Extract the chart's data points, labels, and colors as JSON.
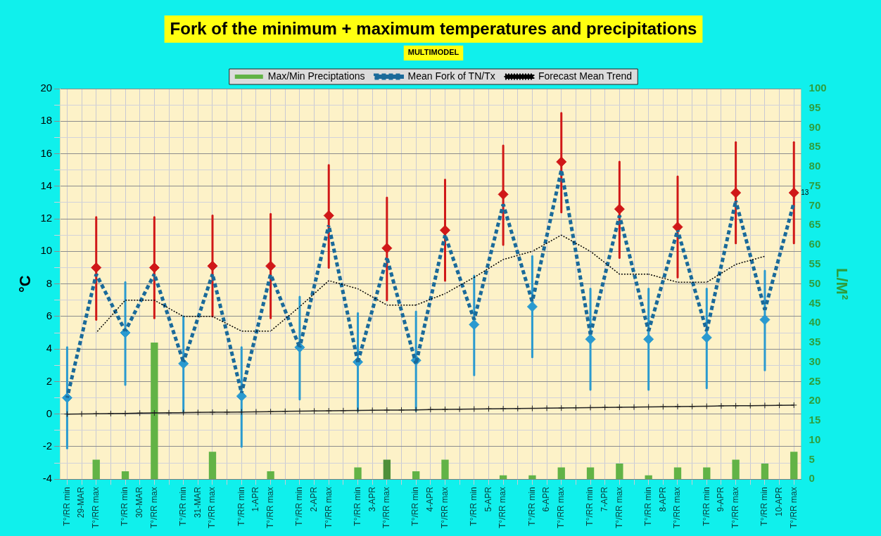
{
  "chart_data": {
    "type": "line",
    "title": "Fork of the minimum + maximum temperatures and precipitations",
    "subtitle": "MULTIMODEL",
    "ylabel": "°C",
    "y2label": "L/M²",
    "categories": [
      "T°/RR min",
      "29-MAR",
      "T°/RR max",
      null,
      "T°/RR min",
      "30-MAR",
      "T°/RR max",
      null,
      "T°/RR min",
      "31-MAR",
      "T°/RR max",
      null,
      "T°/RR min",
      "1-APR",
      "T°/RR max",
      null,
      "T°/RR min",
      "2-APR",
      "T°/RR max",
      null,
      "T°/RR min",
      "3-APR",
      "T°/RR max",
      null,
      "T°/RR min",
      "4-APR",
      "T°/RR max",
      null,
      "T°/RR min",
      "5-APR",
      "T°/RR max",
      null,
      "T°/RR min",
      "6-APR",
      "T°/RR max",
      null,
      "T°/RR min",
      "7-APR",
      "T°/RR max",
      null,
      "T°/RR min",
      "8-APR",
      "T°/RR max",
      null,
      "T°/RR min",
      "9-APR",
      "T°/RR max",
      null,
      "T°/RR min",
      "10-APR",
      "T°/RR max"
    ],
    "ylim": [
      -4,
      20
    ],
    "yticks": [
      -4,
      {
        "value": -3,
        "label": null
      },
      -2,
      {
        "value": -1,
        "label": null
      },
      0,
      {
        "value": 1,
        "label": null
      },
      2,
      {
        "value": 3,
        "label": null
      },
      4,
      {
        "value": 5,
        "label": null
      },
      6,
      {
        "value": 7,
        "label": null
      },
      8,
      {
        "value": 9,
        "label": null
      },
      10,
      {
        "value": 11,
        "label": null
      },
      12,
      {
        "value": 13,
        "label": null
      },
      14,
      {
        "value": 15,
        "label": null
      },
      16,
      {
        "value": 17,
        "label": null
      },
      18,
      {
        "value": 19,
        "label": null
      },
      20
    ],
    "y2lim": [
      0,
      100
    ],
    "y2ticks": [
      0,
      5,
      10,
      15,
      20,
      25,
      30,
      35,
      40,
      45,
      50,
      55,
      60,
      65,
      70,
      75,
      80,
      85,
      90,
      95,
      100
    ],
    "grid": true,
    "legend": "top",
    "series": [
      {
        "name": "Max/Min Preciptations",
        "type": "bar",
        "axis": "y2",
        "color": "#62b346",
        "colors": [
          "#62b346",
          "#62b346",
          "#62b346",
          "#62b346",
          "#62b346",
          "#62b346",
          "#62b346",
          "#62b346",
          "#62b346",
          "#62b346",
          "#62b346",
          "#62b346",
          "#62b346",
          "#62b346",
          "#62b346",
          "#62b346",
          "#62b346",
          "#62b346",
          "#62b346",
          "#62b346",
          "#62b346",
          "#62b346",
          "#4e8f3a",
          "#62b346",
          "#62b346",
          "#62b346",
          "#62b346",
          "#62b346",
          "#62b346",
          "#62b346",
          "#62b346",
          "#62b346",
          "#62b346",
          "#62b346",
          "#62b346",
          "#62b346",
          "#62b346",
          "#62b346",
          "#62b346",
          "#62b346",
          "#62b346",
          "#62b346",
          "#62b346",
          "#62b346",
          "#62b346",
          "#62b346",
          "#62b346",
          "#62b346",
          "#62b346",
          "#62b346",
          "#62b346"
        ],
        "values": [
          null,
          null,
          5,
          null,
          2,
          null,
          35,
          null,
          null,
          null,
          7,
          null,
          null,
          null,
          2,
          null,
          null,
          null,
          null,
          null,
          3,
          null,
          5,
          null,
          2,
          null,
          5,
          null,
          null,
          null,
          1,
          null,
          1,
          null,
          3,
          null,
          3,
          null,
          4,
          null,
          1,
          null,
          3,
          null,
          3,
          null,
          5,
          null,
          4,
          null,
          7
        ]
      },
      {
        "name": "Mean Fork of TN/Tx",
        "color": "#1a6a9a",
        "line_style": "dashed",
        "marker": "none",
        "values": [
          1.0,
          null,
          8.6,
          null,
          5.1,
          null,
          8.6,
          null,
          3.2,
          null,
          8.6,
          null,
          1.3,
          null,
          8.6,
          null,
          4.1,
          null,
          11.6,
          null,
          3.2,
          null,
          9.6,
          null,
          3.1,
          null,
          11.0,
          null,
          5.8,
          null,
          12.9,
          null,
          6.9,
          null,
          15.0,
          null,
          4.9,
          null,
          12.2,
          null,
          5.1,
          null,
          11.3,
          null,
          5.1,
          null,
          13.1,
          null,
          6.4,
          null,
          13
        ],
        "value_labels": [
          null,
          null,
          null,
          null,
          null,
          null,
          null,
          null,
          null,
          null,
          null,
          null,
          null,
          null,
          null,
          null,
          null,
          null,
          null,
          null,
          null,
          null,
          null,
          null,
          null,
          null,
          null,
          null,
          null,
          null,
          null,
          null,
          null,
          null,
          null,
          null,
          null,
          null,
          null,
          null,
          null,
          null,
          null,
          null,
          null,
          null,
          null,
          null,
          null,
          null,
          "13"
        ]
      },
      {
        "type": "scatter",
        "color": "#d01818",
        "marker": "diamond",
        "values": [
          null,
          null,
          9.0,
          null,
          null,
          null,
          9.0,
          null,
          null,
          null,
          9.1,
          null,
          null,
          null,
          9.1,
          null,
          null,
          null,
          12.2,
          null,
          null,
          null,
          10.2,
          null,
          null,
          null,
          11.3,
          null,
          null,
          null,
          13.5,
          null,
          null,
          null,
          15.5,
          null,
          null,
          null,
          12.6,
          null,
          null,
          null,
          11.5,
          null,
          null,
          null,
          13.6,
          null,
          null,
          null,
          13.6
        ],
        "errors": [
          null,
          null,
          [
            5.8,
            12.1
          ],
          null,
          null,
          null,
          [
            5.9,
            12.1
          ],
          null,
          null,
          null,
          [
            6.0,
            12.2
          ],
          null,
          null,
          null,
          [
            5.9,
            12.3
          ],
          null,
          null,
          null,
          [
            9.0,
            15.3
          ],
          null,
          null,
          null,
          [
            7.0,
            13.3
          ],
          null,
          null,
          null,
          [
            8.2,
            14.4
          ],
          null,
          null,
          null,
          [
            10.4,
            16.5
          ],
          null,
          null,
          null,
          [
            12.4,
            18.5
          ],
          null,
          null,
          null,
          [
            9.6,
            15.5
          ],
          null,
          null,
          null,
          [
            8.4,
            14.6
          ],
          null,
          null,
          null,
          [
            10.5,
            16.7
          ],
          null,
          null,
          null,
          [
            10.5,
            16.7
          ]
        ]
      },
      {
        "type": "scatter",
        "color": "#2a9ad0",
        "marker": "diamond",
        "values": [
          1.0,
          null,
          null,
          null,
          5.0,
          null,
          null,
          null,
          3.1,
          null,
          null,
          null,
          1.1,
          null,
          null,
          null,
          4.1,
          null,
          null,
          null,
          3.2,
          null,
          null,
          null,
          3.3,
          null,
          null,
          null,
          5.5,
          null,
          null,
          null,
          6.6,
          null,
          null,
          null,
          4.6,
          null,
          null,
          null,
          4.6,
          null,
          null,
          null,
          4.7,
          null,
          null,
          null,
          5.8,
          null,
          null
        ],
        "errors": [
          [
            -2.1,
            4.1
          ],
          null,
          null,
          null,
          [
            1.8,
            8.1
          ],
          null,
          null,
          null,
          [
            0.1,
            6.0
          ],
          null,
          null,
          null,
          [
            -2.0,
            4.1
          ],
          null,
          null,
          null,
          [
            0.9,
            7.2
          ],
          null,
          null,
          null,
          [
            0.2,
            6.2
          ],
          null,
          null,
          null,
          [
            0.2,
            6.3
          ],
          null,
          null,
          null,
          [
            2.4,
            8.5
          ],
          null,
          null,
          null,
          [
            3.5,
            9.7
          ],
          null,
          null,
          null,
          [
            1.5,
            7.7
          ],
          null,
          null,
          null,
          [
            1.5,
            7.7
          ],
          null,
          null,
          null,
          [
            1.6,
            7.7
          ],
          null,
          null,
          null,
          [
            2.7,
            8.8
          ],
          null,
          null
        ]
      },
      {
        "name": "Forecast Mean Trend",
        "color": "#000000",
        "line_style": "dotted",
        "marker": "none",
        "values": [
          null,
          null,
          5.0,
          null,
          7.0,
          null,
          7.0,
          null,
          6.0,
          null,
          6.0,
          null,
          5.1,
          null,
          5.1,
          null,
          6.6,
          null,
          8.2,
          null,
          7.7,
          null,
          6.7,
          null,
          6.7,
          null,
          7.4,
          null,
          8.4,
          null,
          9.5,
          null,
          10.0,
          null,
          11.0,
          null,
          10.0,
          null,
          8.6,
          null,
          8.6,
          null,
          8.1,
          null,
          8.1,
          null,
          9.2,
          null,
          9.7,
          null,
          null
        ]
      },
      {
        "color": "#222222",
        "line_style": "solid",
        "marker": "cross",
        "values": [
          0,
          0.01,
          0.02,
          0.03,
          0.04,
          0.06,
          0.07,
          0.08,
          0.09,
          0.1,
          0.11,
          0.12,
          0.13,
          0.14,
          0.15,
          0.17,
          0.18,
          0.19,
          0.2,
          0.21,
          0.22,
          0.23,
          0.24,
          0.25,
          0.26,
          0.28,
          0.29,
          0.3,
          0.31,
          0.32,
          0.33,
          0.34,
          0.35,
          0.36,
          0.37,
          0.39,
          0.4,
          0.41,
          0.42,
          0.43,
          0.44,
          0.45,
          0.46,
          0.47,
          0.48,
          0.5,
          0.51,
          0.52,
          0.53,
          0.54,
          0.55
        ]
      }
    ]
  }
}
